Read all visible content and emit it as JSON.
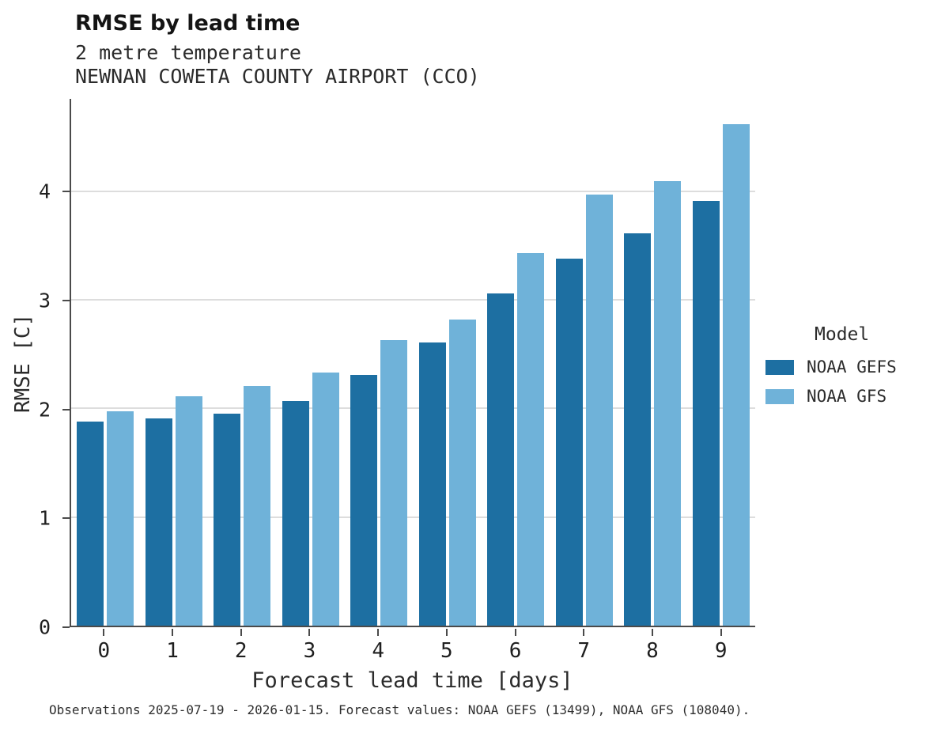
{
  "header": {
    "title": "RMSE by lead time",
    "subtitle1": "2 metre temperature",
    "subtitle2": "NEWNAN COWETA COUNTY AIRPORT (CCO)"
  },
  "legend": {
    "title": "Model"
  },
  "caption": "Observations 2025-07-19 - 2026-01-15. Forecast values: NOAA GEFS (13499), NOAA GFS (108040).",
  "colors": {
    "gefs": "#1d6fa2",
    "gfs": "#6fb2d9",
    "grid": "#dddddd",
    "axis": "#4a4a4a"
  },
  "chart_data": {
    "type": "bar",
    "title": "RMSE by lead time",
    "subtitle": "2 metre temperature — NEWNAN COWETA COUNTY AIRPORT (CCO)",
    "xlabel": "Forecast lead time [days]",
    "ylabel": "RMSE [C]",
    "categories": [
      "0",
      "1",
      "2",
      "3",
      "4",
      "5",
      "6",
      "7",
      "8",
      "9"
    ],
    "series": [
      {
        "name": "NOAA GEFS",
        "color_key": "gefs",
        "values": [
          1.88,
          1.91,
          1.95,
          2.07,
          2.31,
          2.61,
          3.06,
          3.38,
          3.61,
          3.91
        ]
      },
      {
        "name": "NOAA GFS",
        "color_key": "gfs",
        "values": [
          1.97,
          2.11,
          2.21,
          2.33,
          2.63,
          2.82,
          3.43,
          3.97,
          4.09,
          4.62
        ]
      }
    ],
    "ylim": [
      0,
      4.85
    ],
    "yticks": [
      0,
      1,
      2,
      3,
      4
    ],
    "grid": true,
    "legend_position": "right"
  }
}
